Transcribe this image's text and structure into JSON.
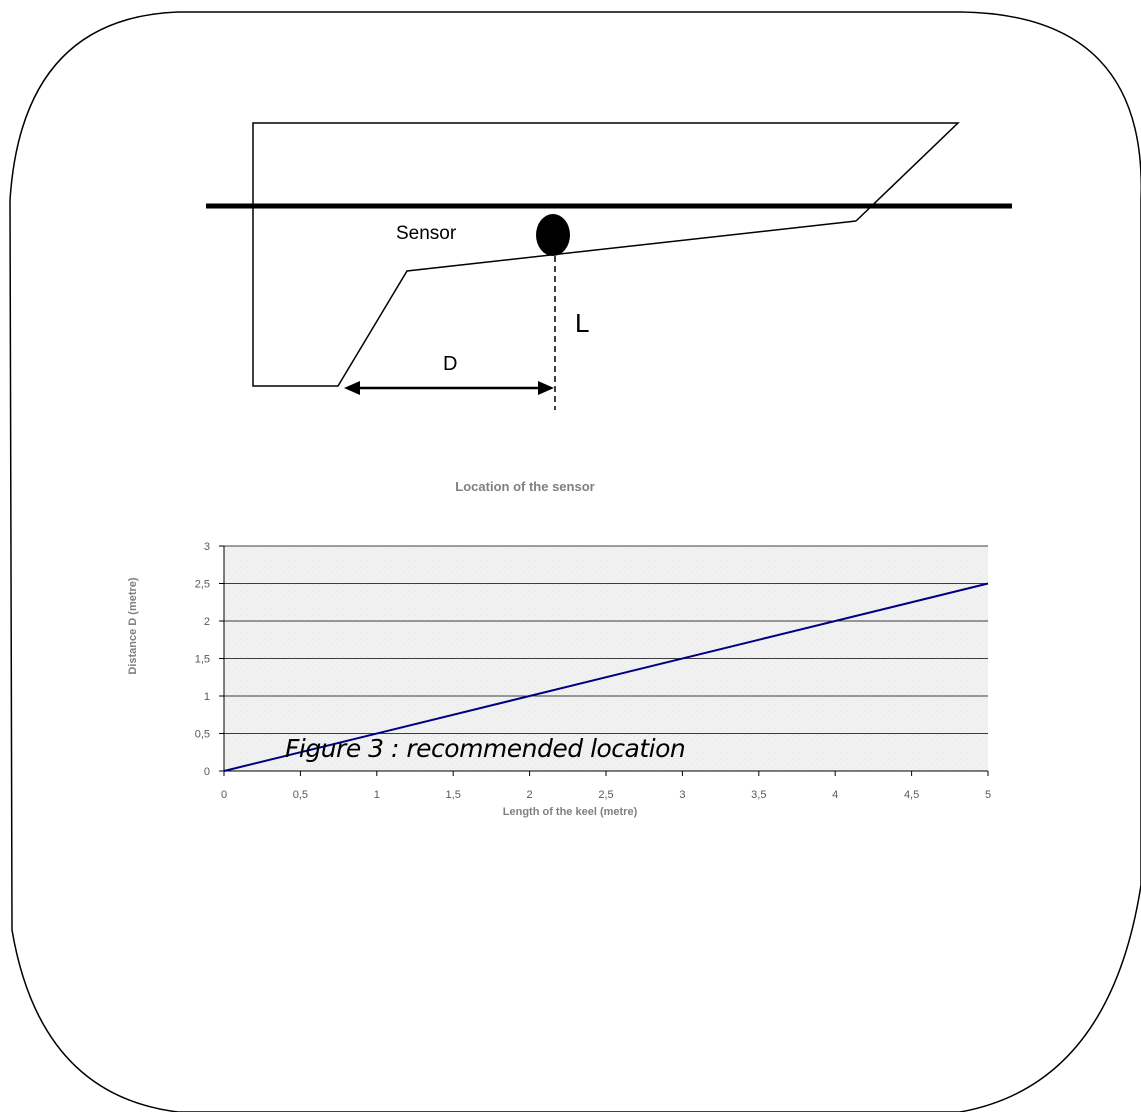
{
  "diagram": {
    "sensor_label": "Sensor",
    "l_label": "L",
    "d_label": "D"
  },
  "caption": "Figure 3 : recommended location",
  "chart_data": {
    "type": "line",
    "title": "Location of the sensor",
    "xlabel": "Length of the keel (metre)",
    "ylabel": "Distance  D (metre)",
    "x_ticks": [
      "0",
      "0,5",
      "1",
      "1,5",
      "2",
      "2,5",
      "3",
      "3,5",
      "4",
      "4,5",
      "5"
    ],
    "y_ticks": [
      "0",
      "0,5",
      "1",
      "1,5",
      "2",
      "2,5",
      "3"
    ],
    "xlim": [
      0,
      5
    ],
    "ylim": [
      0,
      3
    ],
    "grid": "horizontal",
    "legend": "none",
    "series": [
      {
        "x": [
          0,
          5
        ],
        "y": [
          0,
          2.5
        ],
        "color": "#000080"
      }
    ]
  }
}
